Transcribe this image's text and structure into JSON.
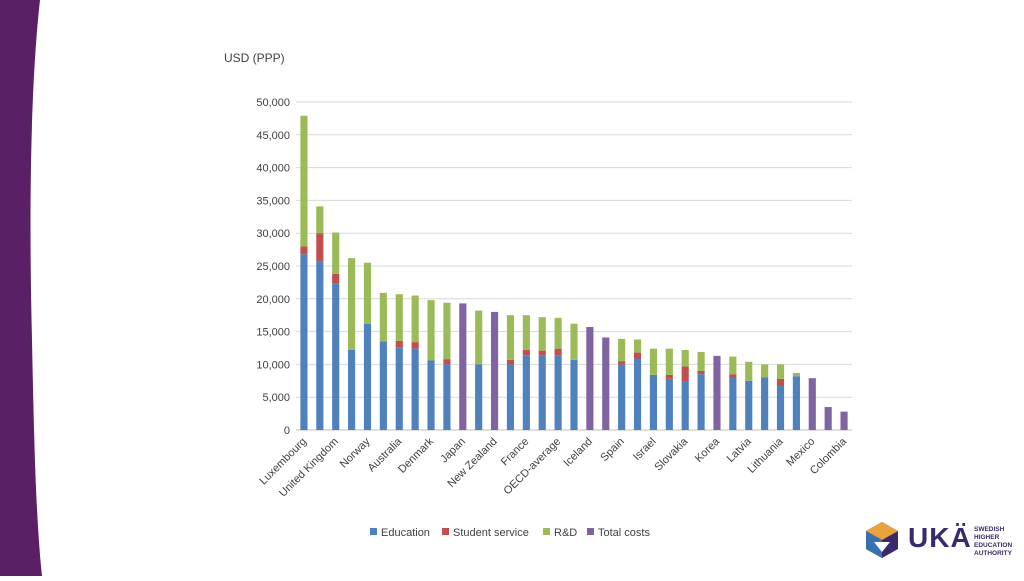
{
  "colors": {
    "band": "#5b1f66",
    "education": "#4f81bd",
    "student_service": "#c0504d",
    "rd": "#9bbb59",
    "total_costs": "#8064a2",
    "grid": "#d9d9d9",
    "text": "#404040"
  },
  "logo": {
    "text": "UKÄ",
    "sub_lines": [
      "SWEDISH HIGHER",
      "EDUCATION",
      "AUTHORITY"
    ]
  },
  "chart_data": {
    "type": "bar",
    "stacked": true,
    "ylabel": "USD (PPP)",
    "ylim": [
      0,
      50000
    ],
    "yticks": [
      0,
      5000,
      10000,
      15000,
      20000,
      25000,
      30000,
      35000,
      40000,
      45000,
      50000
    ],
    "ytick_labels": [
      "0",
      "5,000",
      "10,000",
      "15,000",
      "20,000",
      "25,000",
      "30,000",
      "35,000",
      "40,000",
      "45,000",
      "50,000"
    ],
    "grid": true,
    "legend_position": "bottom",
    "categories": [
      "Luxembourg",
      "",
      "United Kingdom",
      "",
      "Norway",
      "",
      "Australia",
      "",
      "Denmark",
      "",
      "Japan",
      "",
      "New Zealand",
      "",
      "France",
      "",
      "OECD-average",
      "",
      "Iceland",
      "",
      "Spain",
      "",
      "Israel",
      "",
      "Slovakia",
      "",
      "Korea",
      "",
      "Latvia",
      "",
      "Lithuania",
      "",
      "Mexico",
      "",
      "Colombia"
    ],
    "series": [
      {
        "name": "Education",
        "color_key": "education",
        "values": [
          26800,
          25700,
          22300,
          12200,
          16200,
          13500,
          12600,
          12400,
          10600,
          10000,
          0,
          10000,
          0,
          10000,
          11400,
          11400,
          11400,
          10700,
          0,
          0,
          10000,
          10900,
          8400,
          7800,
          7400,
          8500,
          0,
          8000,
          7500,
          8000,
          6700,
          8200,
          0,
          0,
          0
        ]
      },
      {
        "name": "Student service",
        "color_key": "student_service",
        "values": [
          1200,
          4300,
          1500,
          0,
          0,
          0,
          1000,
          1000,
          0,
          800,
          0,
          0,
          0,
          700,
          800,
          700,
          1000,
          0,
          0,
          0,
          500,
          900,
          0,
          600,
          2300,
          500,
          0,
          500,
          0,
          0,
          1100,
          0,
          0,
          0,
          0
        ]
      },
      {
        "name": "R&D",
        "color_key": "rd",
        "values": [
          19900,
          4100,
          6300,
          14000,
          9300,
          7400,
          7100,
          7100,
          9200,
          8600,
          0,
          8200,
          0,
          6800,
          5300,
          5100,
          4700,
          5500,
          0,
          0,
          3400,
          2000,
          4000,
          4000,
          2500,
          2900,
          0,
          2700,
          2900,
          2000,
          2200,
          500,
          0,
          0,
          0
        ]
      },
      {
        "name": "Total costs",
        "color_key": "total_costs",
        "values": [
          0,
          0,
          0,
          0,
          0,
          0,
          0,
          0,
          0,
          0,
          19300,
          0,
          18000,
          0,
          0,
          0,
          0,
          0,
          15700,
          14100,
          0,
          0,
          0,
          0,
          0,
          0,
          11300,
          0,
          0,
          0,
          0,
          0,
          7900,
          3500,
          2800
        ]
      }
    ]
  }
}
